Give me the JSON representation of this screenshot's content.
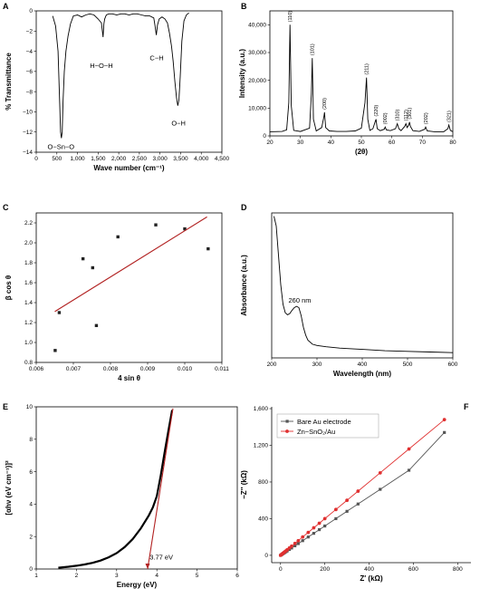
{
  "chart_data": [
    {
      "panel": "A",
      "type": "line",
      "xlabel": "Wave number (cm⁻¹)",
      "ylabel": "% Transmittance",
      "xlim": [
        0,
        4500
      ],
      "ylim": [
        -14,
        0
      ],
      "xticks": [
        "0",
        "500",
        "1,000",
        "1,500",
        "2,000",
        "2,500",
        "3,000",
        "3,500",
        "4,000",
        "4,500"
      ],
      "yticks": [
        "0",
        "−2",
        "−4",
        "−6",
        "−8",
        "−10",
        "−12",
        "−14"
      ],
      "series": [
        {
          "x": [
            400,
            470,
            530,
            560,
            590,
            610,
            630,
            650,
            680,
            720,
            770,
            830,
            900,
            1000,
            1100,
            1200,
            1300,
            1400,
            1500,
            1580,
            1620,
            1640,
            1660,
            1700,
            1760,
            1850,
            1950,
            2050,
            2150,
            2250,
            2350,
            2450,
            2550,
            2650,
            2750,
            2850,
            2880,
            2910,
            2940,
            2980,
            3050,
            3120,
            3180,
            3230,
            3280,
            3320,
            3360,
            3400,
            3430,
            3460,
            3490,
            3530,
            3580,
            3640,
            3700
          ],
          "y": [
            -0.5,
            -1.5,
            -4,
            -8,
            -12,
            -12.6,
            -12,
            -9,
            -6,
            -4,
            -2.5,
            -1.3,
            -0.5,
            -0.4,
            -0.6,
            -0.4,
            -0.3,
            -0.4,
            -0.8,
            -1.2,
            -2.6,
            -1.3,
            -0.8,
            -0.4,
            -0.3,
            -0.3,
            -0.4,
            -0.3,
            -0.3,
            -0.4,
            -0.3,
            -0.3,
            -0.4,
            -0.5,
            -0.5,
            -0.7,
            -1.5,
            -2.4,
            -1.4,
            -0.8,
            -0.6,
            -0.8,
            -1.2,
            -2.2,
            -3.5,
            -5,
            -7,
            -8.6,
            -9.4,
            -8.8,
            -6.5,
            -3,
            -1,
            -0.4,
            -0.2
          ]
        }
      ],
      "annotations": [
        {
          "text": "O−Sn−O",
          "x": 600,
          "y": -13.4
        },
        {
          "text": "H−O−H",
          "x": 1580,
          "y": -5.4
        },
        {
          "text": "C−H",
          "x": 2920,
          "y": -4.6
        },
        {
          "text": "O−H",
          "x": 3450,
          "y": -11.1
        }
      ]
    },
    {
      "panel": "B",
      "type": "line",
      "xlabel": "(2θ)",
      "ylabel": "Intensity (a.u.)",
      "xlim": [
        20,
        80
      ],
      "ylim": [
        0,
        45000
      ],
      "xticks": [
        "20",
        "30",
        "40",
        "50",
        "60",
        "70",
        "80"
      ],
      "yticks": [
        "0",
        "10,000",
        "20,000",
        "30,000",
        "40,000"
      ],
      "series": [
        {
          "x": [
            20,
            24,
            25.5,
            26.2,
            26.6,
            27,
            27.8,
            30,
            33,
            33.6,
            33.9,
            34.3,
            35.2,
            37,
            37.7,
            37.9,
            38.3,
            39.5,
            42,
            45,
            48,
            50,
            51.2,
            51.7,
            52.1,
            52.8,
            53.8,
            54.5,
            54.8,
            55.2,
            56.2,
            57.5,
            57.8,
            58.2,
            59.5,
            61.2,
            61.8,
            62.3,
            63,
            64.2,
            64.6,
            65,
            65.5,
            65.8,
            66.1,
            66.9,
            69,
            70.8,
            71.1,
            71.6,
            74,
            77,
            78.4,
            78.7,
            79.2,
            80
          ],
          "y": [
            1500,
            1600,
            2200,
            12000,
            40000,
            11000,
            2000,
            1600,
            2800,
            15000,
            28000,
            6000,
            1800,
            3000,
            6800,
            8500,
            3000,
            1800,
            1600,
            1600,
            1800,
            2800,
            12000,
            21000,
            6000,
            2000,
            2600,
            5000,
            6000,
            2600,
            1900,
            2400,
            3200,
            2200,
            1900,
            2600,
            4400,
            2600,
            1900,
            3400,
            4400,
            3000,
            3800,
            5000,
            3400,
            1900,
            1600,
            2400,
            3200,
            1800,
            1500,
            1500,
            2600,
            3900,
            2000,
            1500
          ]
        }
      ],
      "peak_labels": [
        {
          "text": "(110)",
          "x": 26.6
        },
        {
          "text": "(101)",
          "x": 33.9
        },
        {
          "text": "(200)",
          "x": 37.9
        },
        {
          "text": "(211)",
          "x": 51.7
        },
        {
          "text": "(220)",
          "x": 54.8
        },
        {
          "text": "(002)",
          "x": 57.8
        },
        {
          "text": "(310)",
          "x": 61.8
        },
        {
          "text": "(112)",
          "x": 64.6
        },
        {
          "text": "(301)",
          "x": 65.8
        },
        {
          "text": "(202)",
          "x": 71.1
        },
        {
          "text": "(321)",
          "x": 78.7
        }
      ]
    },
    {
      "panel": "C",
      "type": "scatter",
      "xlabel": "4 sin θ",
      "ylabel": "β cos θ",
      "xlim": [
        0.006,
        0.011
      ],
      "ylim": [
        0.8,
        2.3
      ],
      "xticks": [
        "0.006",
        "0.007",
        "0.008",
        "0.009",
        "0.010",
        "0.011"
      ],
      "yticks": [
        "0.8",
        "1.0",
        "1.2",
        "1.4",
        "1.6",
        "1.8",
        "2.0",
        "2.2"
      ],
      "points": [
        {
          "x": 0.00651,
          "y": 0.92
        },
        {
          "x": 0.00662,
          "y": 1.3
        },
        {
          "x": 0.00726,
          "y": 1.84
        },
        {
          "x": 0.00752,
          "y": 1.75
        },
        {
          "x": 0.00762,
          "y": 1.17
        },
        {
          "x": 0.0082,
          "y": 2.06
        },
        {
          "x": 0.00922,
          "y": 2.18
        },
        {
          "x": 0.01,
          "y": 2.14
        },
        {
          "x": 0.01063,
          "y": 1.94
        }
      ],
      "fit_line": {
        "x": [
          0.0065,
          0.0106
        ],
        "y": [
          1.31,
          2.26
        ]
      }
    },
    {
      "panel": "D",
      "type": "line",
      "xlabel": "Wavelength (nm)",
      "ylabel": "Absorbance (a.u.)",
      "xlim": [
        200,
        600
      ],
      "xticks": [
        "200",
        "300",
        "400",
        "500",
        "600"
      ],
      "series": [
        {
          "x": [
            205,
            210,
            215,
            220,
            225,
            230,
            235,
            240,
            245,
            250,
            255,
            260,
            265,
            270,
            275,
            280,
            290,
            300,
            320,
            350,
            400,
            450,
            500,
            550,
            600
          ],
          "y": [
            2.2,
            2.05,
            1.6,
            1.15,
            0.85,
            0.72,
            0.69,
            0.71,
            0.76,
            0.8,
            0.82,
            0.8,
            0.68,
            0.5,
            0.38,
            0.3,
            0.24,
            0.22,
            0.2,
            0.18,
            0.16,
            0.14,
            0.13,
            0.12,
            0.11
          ]
        }
      ],
      "annotations": [
        {
          "text": "260 nm",
          "x": 262,
          "y": 0.92
        }
      ]
    },
    {
      "panel": "E",
      "type": "line",
      "xlabel": "Energy (eV)",
      "ylabel": "[αhν (eV cm⁻¹)]²",
      "xlim": [
        1,
        6
      ],
      "ylim": [
        0,
        10
      ],
      "xticks": [
        "1",
        "2",
        "3",
        "4",
        "5",
        "6"
      ],
      "yticks": [
        "0",
        "2",
        "4",
        "6",
        "8",
        "10"
      ],
      "series": [
        {
          "x": [
            1.55,
            1.8,
            2.0,
            2.2,
            2.4,
            2.6,
            2.8,
            3.0,
            3.2,
            3.4,
            3.6,
            3.8,
            3.9,
            4.0,
            4.1,
            4.2,
            4.3,
            4.38
          ],
          "y": [
            0.08,
            0.14,
            0.2,
            0.28,
            0.38,
            0.52,
            0.72,
            0.98,
            1.35,
            1.85,
            2.5,
            3.3,
            3.8,
            4.5,
            5.8,
            7.3,
            8.7,
            9.8
          ]
        }
      ],
      "tangent": {
        "x": [
          3.77,
          4.4
        ],
        "y": [
          0,
          9.9
        ]
      },
      "annotations": [
        {
          "text": "3.77 eV",
          "x": 3.82,
          "y": 0.75
        }
      ]
    },
    {
      "panel": "F",
      "type": "line",
      "xlabel": "Z′ (kΩ)",
      "ylabel": "−Z″ (kΩ)",
      "xlim": [
        -40,
        860
      ],
      "ylim": [
        -80,
        1620
      ],
      "xticks": [
        "0",
        "200",
        "400",
        "600",
        "800"
      ],
      "yticks": [
        "0",
        "400",
        "800",
        "1,200",
        "1,600"
      ],
      "legend_position": "top-left",
      "series": [
        {
          "name": "Bare Au electrode",
          "color": "#555555",
          "marker": "square",
          "x": [
            0,
            3,
            6,
            9,
            12,
            16,
            20,
            25,
            30,
            40,
            50,
            65,
            80,
            100,
            125,
            150,
            175,
            200,
            250,
            300,
            350,
            450,
            580,
            740
          ],
          "y": [
            0,
            5,
            10,
            15,
            20,
            26,
            32,
            40,
            48,
            64,
            80,
            104,
            128,
            160,
            200,
            240,
            280,
            320,
            400,
            480,
            560,
            720,
            928,
            1340
          ]
        },
        {
          "name": "Zn−SnO₂/Au",
          "color": "#e03030",
          "marker": "circle",
          "x": [
            0,
            3,
            6,
            9,
            12,
            16,
            20,
            25,
            30,
            40,
            50,
            65,
            80,
            100,
            125,
            150,
            175,
            200,
            250,
            300,
            350,
            450,
            580,
            740
          ],
          "y": [
            0,
            6,
            12,
            18,
            24,
            32,
            40,
            50,
            60,
            80,
            100,
            130,
            160,
            200,
            250,
            300,
            350,
            400,
            500,
            600,
            700,
            900,
            1160,
            1480
          ]
        }
      ]
    }
  ],
  "colors": {
    "trend_line": "#b22222",
    "marker_dark": "#222222"
  }
}
